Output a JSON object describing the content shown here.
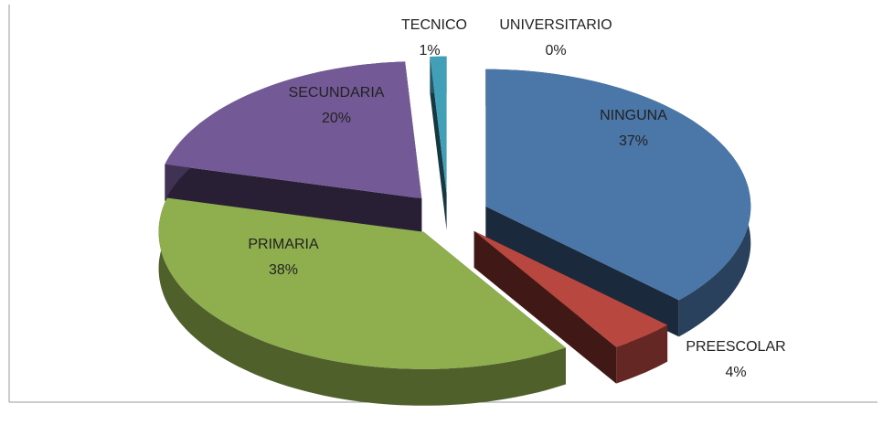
{
  "chart_data": {
    "type": "pie3d",
    "categories": [
      "NINGUNA",
      "PREESCOLAR",
      "PRIMARIA",
      "SECUNDARIA",
      "TECNICO",
      "UNIVERSITARIO"
    ],
    "values": [
      37,
      4,
      38,
      20,
      1,
      0
    ],
    "value_labels": [
      "37%",
      "4%",
      "38%",
      "20%",
      "1%",
      "0%"
    ],
    "colors": [
      "#4a76a8",
      "#b8473f",
      "#8fae4e",
      "#735a96",
      "#41a0b8",
      "#f08a3a"
    ]
  }
}
